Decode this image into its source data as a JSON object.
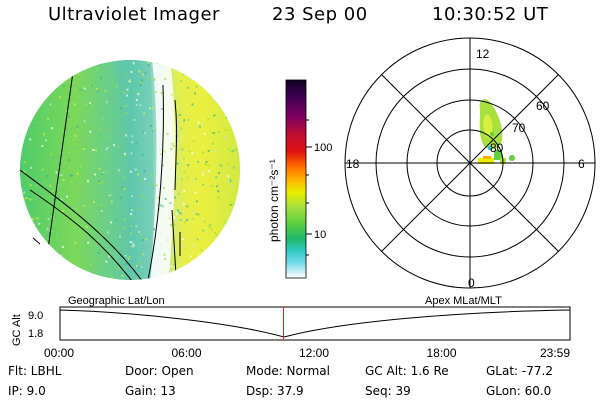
{
  "header": {
    "title": "Ultraviolet Imager",
    "date": "23 Sep 00",
    "time": "10:30:52 UT"
  },
  "colorbar": {
    "unit_label": "photon cm⁻²s⁻¹",
    "ticks": [
      "100",
      "10"
    ],
    "scale": "log",
    "colors_top_to_bottom": [
      "#100020",
      "#3a0050",
      "#7a0060",
      "#b00030",
      "#e01010",
      "#ff6000",
      "#ffb000",
      "#e8f000",
      "#a8e040",
      "#60d040",
      "#20b868",
      "#30c8c0",
      "#70d8e8",
      "#c0e8f0",
      "#ffffff"
    ]
  },
  "polar": {
    "labels": {
      "top": "12",
      "bottom": "0",
      "left": "18",
      "right": "6"
    },
    "lat_labels": [
      "60",
      "70",
      "80"
    ]
  },
  "timeline": {
    "left_title": "Geographic Lat/Lon",
    "right_title": "Apex MLat/MLT",
    "yaxis_label": "GC Alt",
    "yticks": [
      "9.0",
      "1.8"
    ],
    "xticks": [
      "00:00",
      "06:00",
      "12:00",
      "18:00",
      "23:59"
    ],
    "current_time_fraction": 0.4381
  },
  "status": {
    "flt": "Flt: LBHL",
    "ip": "IP:  9.0",
    "door": "Door: Open",
    "gain": "Gain: 13",
    "mode": "Mode: Normal",
    "dsp": "Dsp:   37.9",
    "gcalt": "GC Alt: 1.6 Re",
    "seq": "Seq: 39",
    "glat": "GLat:  -77.2",
    "glon": "GLon:  60.0"
  }
}
